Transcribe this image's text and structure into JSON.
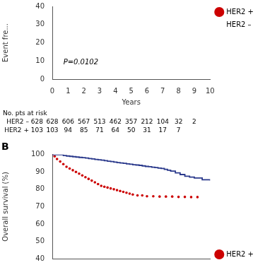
{
  "chart_data": [
    {
      "type": "line",
      "xlabel": "Years",
      "ylabel": "Event fre...",
      "xlim": [
        0,
        10
      ],
      "ylim": [
        0,
        40
      ],
      "xticks": [
        0,
        1,
        2,
        3,
        4,
        5,
        6,
        7,
        8,
        9,
        10
      ],
      "yticks": [
        0,
        10,
        20,
        30,
        40
      ],
      "grid": false,
      "legend": "upper right",
      "annotations": [
        {
          "text": "P=0.0102",
          "x": 0.7,
          "y": 8
        }
      ],
      "series": [
        {
          "name": "HER2 +",
          "type": "scatter",
          "marker": "dot",
          "color": "#cc0000",
          "x": [],
          "values": []
        },
        {
          "name": "HER2 –",
          "type": "line",
          "line_style": "solid",
          "color": "#2b3a8c",
          "x": [],
          "values": []
        }
      ],
      "at_risk": {
        "header": "No. pts at risk",
        "rows": [
          {
            "label": "HER2 – 628",
            "x": [
              0,
              1,
              2,
              3,
              4,
              5,
              6,
              7,
              8,
              9
            ],
            "values": [
              628,
              606,
              567,
              513,
              462,
              357,
              212,
              104,
              32,
              2
            ]
          },
          {
            "label": "HER2 + 103",
            "x": [
              0,
              1,
              2,
              3,
              4,
              5,
              6,
              7,
              8
            ],
            "values": [
              103,
              94,
              85,
              71,
              64,
              50,
              31,
              17,
              7
            ]
          }
        ]
      }
    },
    {
      "type": "line",
      "title": "B",
      "ylabel": "Overall survival (%)",
      "xlim": [
        0,
        10
      ],
      "ylim": [
        40,
        100
      ],
      "yticks": [
        40,
        50,
        60,
        70,
        80,
        90,
        100
      ],
      "tick_labels": "y",
      "grid": false,
      "legend": "lower right",
      "series": [
        {
          "type": "step",
          "line_style": "solid",
          "color": "#2b3a8c",
          "x": [
            0.0,
            0.1,
            0.3,
            0.5,
            0.7,
            0.9,
            1.1,
            1.3,
            1.5,
            1.7,
            1.9,
            2.1,
            2.3,
            2.5,
            2.7,
            2.9,
            3.1,
            3.3,
            3.5,
            3.7,
            3.9,
            4.1,
            4.3,
            4.5,
            4.7,
            4.9,
            5.1,
            5.3,
            5.5,
            5.7,
            5.9,
            6.1,
            6.3,
            6.5,
            6.7,
            6.9,
            7.1,
            7.3,
            7.5,
            7.8,
            8.1,
            8.4,
            8.7,
            9.0,
            9.5,
            10.0
          ],
          "values": [
            100,
            100,
            100,
            100,
            99.5,
            99.2,
            99.0,
            98.8,
            98.6,
            98.4,
            98.2,
            98.0,
            97.7,
            97.5,
            97.2,
            97.0,
            96.8,
            96.5,
            96.2,
            96.0,
            95.7,
            95.4,
            95.2,
            95.0,
            94.7,
            94.5,
            94.2,
            94.0,
            93.8,
            93.5,
            93.2,
            93.0,
            92.7,
            92.5,
            92.2,
            92.0,
            91.5,
            91.0,
            90.5,
            89.5,
            88.5,
            87.5,
            87.0,
            86.5,
            85.5,
            85.0
          ]
        },
        {
          "name": "HER2 +",
          "type": "scatter",
          "marker": "dot",
          "color": "#cc0000",
          "x": [
            0.0,
            0.15,
            0.3,
            0.5,
            0.7,
            0.9,
            1.1,
            1.3,
            1.5,
            1.7,
            1.9,
            2.1,
            2.3,
            2.5,
            2.7,
            2.9,
            3.1,
            3.3,
            3.5,
            3.7,
            3.9,
            4.1,
            4.3,
            4.5,
            4.7,
            4.9,
            5.1,
            5.4,
            5.7,
            6.0,
            6.4,
            6.8,
            7.2,
            7.6,
            8.0,
            8.4,
            8.8,
            9.2
          ],
          "values": [
            100,
            99.0,
            97.5,
            96.0,
            94.5,
            93.0,
            92.0,
            91.0,
            90.0,
            89.0,
            88.0,
            87.0,
            86.0,
            85.0,
            84.0,
            83.0,
            82.0,
            81.5,
            81.0,
            80.5,
            80.0,
            79.5,
            79.0,
            78.5,
            78.0,
            77.5,
            77.0,
            76.5,
            76.5,
            76.0,
            76.0,
            75.8,
            75.8,
            75.8,
            75.6,
            75.6,
            75.5,
            75.5
          ]
        }
      ]
    }
  ]
}
